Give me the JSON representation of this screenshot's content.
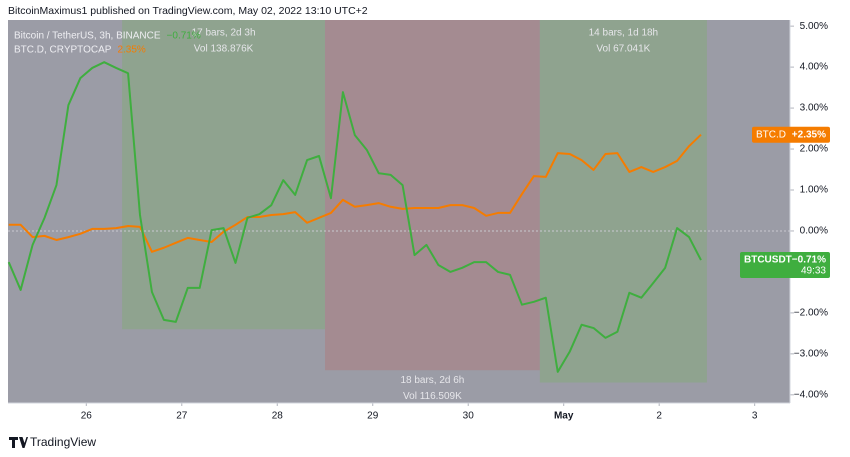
{
  "chart_data": {
    "type": "line",
    "header": "BitcoinMaximus1 published on TradingView.com, May 02, 2022 13:10 UTC+2",
    "footer": "TradingView",
    "background": "#9b9ca6",
    "xlim": [
      25.18,
      33.37
    ],
    "xticks": [
      26,
      27,
      28,
      29,
      30,
      {
        "value": 31,
        "label": "May"
      },
      {
        "value": 32,
        "label": "2"
      },
      {
        "value": 33,
        "label": "3"
      }
    ],
    "ylim": [
      -4.2,
      5.15
    ],
    "yticks": [
      {
        "value": 5,
        "label": "5.00%"
      },
      {
        "value": 4,
        "label": "4.00%"
      },
      {
        "value": 3,
        "label": "3.00%"
      },
      {
        "value": 2,
        "label": "2.00%"
      },
      {
        "value": 1,
        "label": "1.00%"
      },
      {
        "value": 0,
        "label": "0.00%"
      },
      {
        "value": -1,
        "label": "−1.00%"
      },
      {
        "value": -2,
        "label": "−2.00%"
      },
      {
        "value": -3,
        "label": "−3.00%"
      },
      {
        "value": -4,
        "label": "−4.00%"
      }
    ],
    "grid": false,
    "ranges": [
      {
        "bars": "17 bars, 2d 3h",
        "volume": "Vol 138.876K",
        "start": 26.375,
        "end": 28.5,
        "low": -2.4,
        "color": "#8fa38f",
        "label_position": "top"
      },
      {
        "bars": "18 bars, 2d 6h",
        "volume": "Vol 116.509K",
        "start": 28.5,
        "end": 30.75,
        "low": -3.4,
        "color": "#a48b91",
        "label_position": "bottom"
      },
      {
        "bars": "14 bars, 1d 18h",
        "volume": "Vol 67.041K",
        "start": 30.75,
        "end": 32.5,
        "low": -3.7,
        "color": "#8fa38f",
        "label_position": "top"
      }
    ],
    "x": [
      25.1875,
      25.3125,
      25.4375,
      25.5625,
      25.6875,
      25.8125,
      25.9375,
      26.0625,
      26.1875,
      26.3125,
      26.4375,
      26.5625,
      26.6875,
      26.8125,
      26.9375,
      27.0625,
      27.1875,
      27.3125,
      27.4375,
      27.5625,
      27.6875,
      27.8125,
      27.9375,
      28.0625,
      28.1875,
      28.3125,
      28.4375,
      28.5625,
      28.6875,
      28.8125,
      28.9375,
      29.0625,
      29.1875,
      29.3125,
      29.4375,
      29.5625,
      29.6875,
      29.8125,
      29.9375,
      30.0625,
      30.1875,
      30.3125,
      30.4375,
      30.5625,
      30.6875,
      30.8125,
      30.9375,
      31.0625,
      31.1875,
      31.3125,
      31.4375,
      31.5625,
      31.6875,
      31.8125,
      31.9375,
      32.0625,
      32.1875,
      32.3125,
      32.4375
    ],
    "series": [
      {
        "name": "BTC.D",
        "legend": "BTC.D, CRYPTOCAP",
        "legend_value": "2.35%",
        "last_label": "+2.35%",
        "color": "#f57c00",
        "values": [
          0.15,
          0.15,
          -0.15,
          -0.12,
          -0.22,
          -0.15,
          -0.07,
          0.05,
          0.05,
          0.07,
          0.12,
          0.1,
          -0.51,
          -0.41,
          -0.29,
          -0.17,
          -0.22,
          -0.27,
          -0.02,
          0.15,
          0.34,
          0.34,
          0.39,
          0.41,
          0.46,
          0.2,
          0.32,
          0.44,
          0.76,
          0.59,
          0.63,
          0.68,
          0.59,
          0.54,
          0.56,
          0.56,
          0.56,
          0.63,
          0.63,
          0.56,
          0.37,
          0.44,
          0.44,
          0.9,
          1.34,
          1.32,
          1.9,
          1.88,
          1.73,
          1.49,
          1.88,
          1.9,
          1.44,
          1.56,
          1.44,
          1.56,
          1.71,
          2.07,
          2.35
        ]
      },
      {
        "name": "BTCUSDT",
        "legend": "Bitcoin / TetherUS, 3h, BINANCE",
        "legend_value": "−0.71%",
        "last_label": "−0.71%",
        "countdown": "49:33",
        "color": "#3fae3f",
        "values": [
          -0.76,
          -1.44,
          -0.34,
          0.32,
          1.12,
          3.07,
          3.73,
          3.98,
          4.12,
          3.98,
          3.85,
          0.39,
          -1.49,
          -2.17,
          -2.22,
          -1.39,
          -1.39,
          0.02,
          0.07,
          -0.78,
          0.32,
          0.41,
          0.63,
          1.24,
          0.88,
          1.73,
          1.83,
          0.8,
          3.39,
          2.34,
          1.98,
          1.41,
          1.37,
          1.12,
          -0.59,
          -0.34,
          -0.83,
          -1.0,
          -0.9,
          -0.76,
          -0.76,
          -1.0,
          -1.07,
          -1.8,
          -1.73,
          -1.63,
          -3.44,
          -2.95,
          -2.29,
          -2.37,
          -2.61,
          -2.46,
          -1.51,
          -1.63,
          -1.27,
          -0.9,
          0.07,
          -0.15,
          -0.71
        ]
      }
    ]
  }
}
